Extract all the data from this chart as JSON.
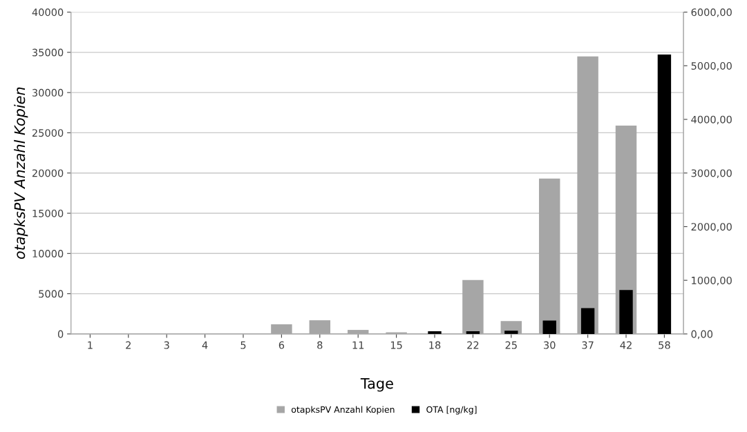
{
  "chart_data": {
    "type": "bar",
    "xlabel": "Tage",
    "ylabel": "otapksPV Anzahl Kopien",
    "categories": [
      "1",
      "2",
      "3",
      "4",
      "5",
      "6",
      "8",
      "11",
      "15",
      "18",
      "22",
      "25",
      "30",
      "37",
      "42",
      "58"
    ],
    "series": [
      {
        "name": "otapksPV Anzahl Kopien",
        "color": "#a6a6a6",
        "values": [
          0,
          0,
          0,
          0,
          0,
          1200,
          1700,
          500,
          200,
          0,
          6700,
          1600,
          19300,
          34500,
          25900,
          0
        ]
      },
      {
        "name": "OTA [ng/kg]",
        "color": "#000000",
        "axis": "y2",
        "values": [
          0,
          0,
          0,
          0,
          0,
          0,
          0,
          0,
          null,
          50,
          50,
          60,
          250,
          480,
          820,
          5210
        ]
      }
    ],
    "ylim": [
      0,
      40000
    ],
    "yticks": [
      0,
      5000,
      10000,
      15000,
      20000,
      25000,
      30000,
      35000,
      40000
    ],
    "y2lim": [
      0,
      6000
    ],
    "y2ticks": [
      {
        "value": 0,
        "label": "0,00"
      },
      {
        "value": 1000,
        "label": "1000,00"
      },
      {
        "value": 2000,
        "label": "2000,00"
      },
      {
        "value": 3000,
        "label": "3000,00"
      },
      {
        "value": 4000,
        "label": "4000,00"
      },
      {
        "value": 5000,
        "label": "5000,00"
      },
      {
        "value": 6000,
        "label": "6000,00"
      }
    ],
    "grid": "y",
    "legend": "bottom"
  }
}
